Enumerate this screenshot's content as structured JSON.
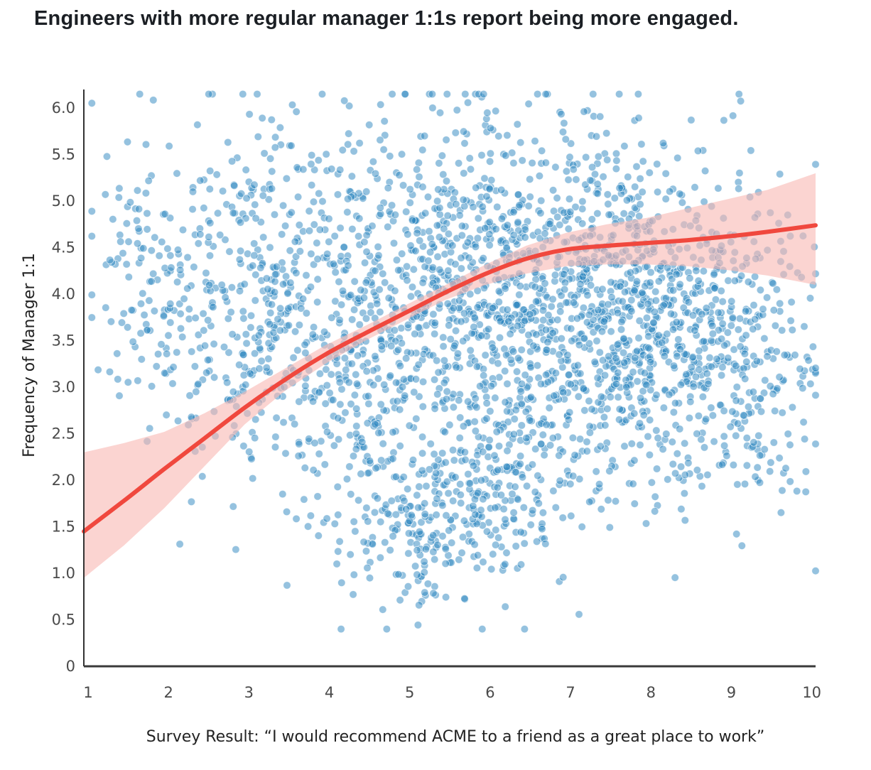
{
  "chart_data": {
    "type": "scatter",
    "title": "Engineers with more regular manager 1:1s report being more engaged.",
    "xlabel": "Survey Result: “I would recommend ACME to a friend as a great place to work”",
    "ylabel": "Frequency of Manager 1:1",
    "xlim": [
      1,
      10.1
    ],
    "ylim": [
      0,
      6.2
    ],
    "x_ticks": [
      "1",
      "2",
      "3",
      "4",
      "5",
      "6",
      "7",
      "8",
      "9",
      "10"
    ],
    "y_ticks": [
      "0",
      "0.5",
      "1.0",
      "1.5",
      "2.0",
      "2.5",
      "3.0",
      "3.5",
      "4.0",
      "4.5",
      "5.0",
      "5.5",
      "6.0"
    ],
    "grid": false,
    "legend": "none",
    "colors": {
      "points": "#2b86bf",
      "trend": "#f0483e",
      "band": "#f9b8b2"
    },
    "scatter_clusters": [
      {
        "center": [
          1.7,
          4.3
        ],
        "spread": [
          0.35,
          0.9
        ],
        "count": 110
      },
      {
        "center": [
          2.6,
          3.9
        ],
        "spread": [
          0.35,
          1.0
        ],
        "count": 130
      },
      {
        "center": [
          3.3,
          4.0
        ],
        "spread": [
          0.3,
          1.0
        ],
        "count": 170
      },
      {
        "center": [
          4.3,
          3.6
        ],
        "spread": [
          0.5,
          1.1
        ],
        "count": 380
      },
      {
        "center": [
          5.2,
          1.5
        ],
        "spread": [
          0.45,
          0.45
        ],
        "count": 170
      },
      {
        "center": [
          5.4,
          4.2
        ],
        "spread": [
          0.5,
          0.9
        ],
        "count": 320
      },
      {
        "center": [
          6.2,
          1.9
        ],
        "spread": [
          0.5,
          0.55
        ],
        "count": 170
      },
      {
        "center": [
          6.3,
          3.9
        ],
        "spread": [
          0.55,
          1.0
        ],
        "count": 420
      },
      {
        "center": [
          7.4,
          3.8
        ],
        "spread": [
          0.5,
          1.0
        ],
        "count": 440
      },
      {
        "center": [
          8.2,
          3.7
        ],
        "spread": [
          0.5,
          0.9
        ],
        "count": 360
      },
      {
        "center": [
          9.1,
          3.6
        ],
        "spread": [
          0.45,
          0.9
        ],
        "count": 230
      },
      {
        "center": [
          9.7,
          2.9
        ],
        "spread": [
          0.3,
          0.8
        ],
        "count": 50
      }
    ],
    "series": [
      {
        "type": "line",
        "x": [
          1.0,
          1.5,
          2.0,
          2.5,
          3.0,
          3.5,
          4.0,
          4.5,
          5.0,
          5.5,
          6.0,
          6.5,
          7.0,
          7.5,
          8.0,
          8.5,
          9.0,
          9.5,
          10.1
        ],
        "y": [
          1.45,
          1.78,
          2.12,
          2.45,
          2.78,
          3.08,
          3.35,
          3.58,
          3.8,
          4.02,
          4.22,
          4.38,
          4.48,
          4.52,
          4.55,
          4.58,
          4.62,
          4.67,
          4.74
        ]
      },
      {
        "type": "band",
        "x": [
          1.0,
          1.5,
          2.0,
          2.5,
          3.0,
          3.5,
          4.0,
          4.5,
          5.0,
          5.5,
          6.0,
          6.5,
          7.0,
          7.5,
          8.0,
          8.5,
          9.0,
          9.5,
          10.1
        ],
        "upper": [
          2.3,
          2.4,
          2.52,
          2.72,
          2.95,
          3.2,
          3.45,
          3.66,
          3.88,
          4.1,
          4.32,
          4.52,
          4.66,
          4.75,
          4.82,
          4.92,
          5.02,
          5.12,
          5.3
        ],
        "lower": [
          0.95,
          1.3,
          1.7,
          2.15,
          2.6,
          2.96,
          3.25,
          3.5,
          3.72,
          3.94,
          4.1,
          4.22,
          4.3,
          4.32,
          4.32,
          4.3,
          4.26,
          4.2,
          4.1
        ]
      }
    ]
  }
}
